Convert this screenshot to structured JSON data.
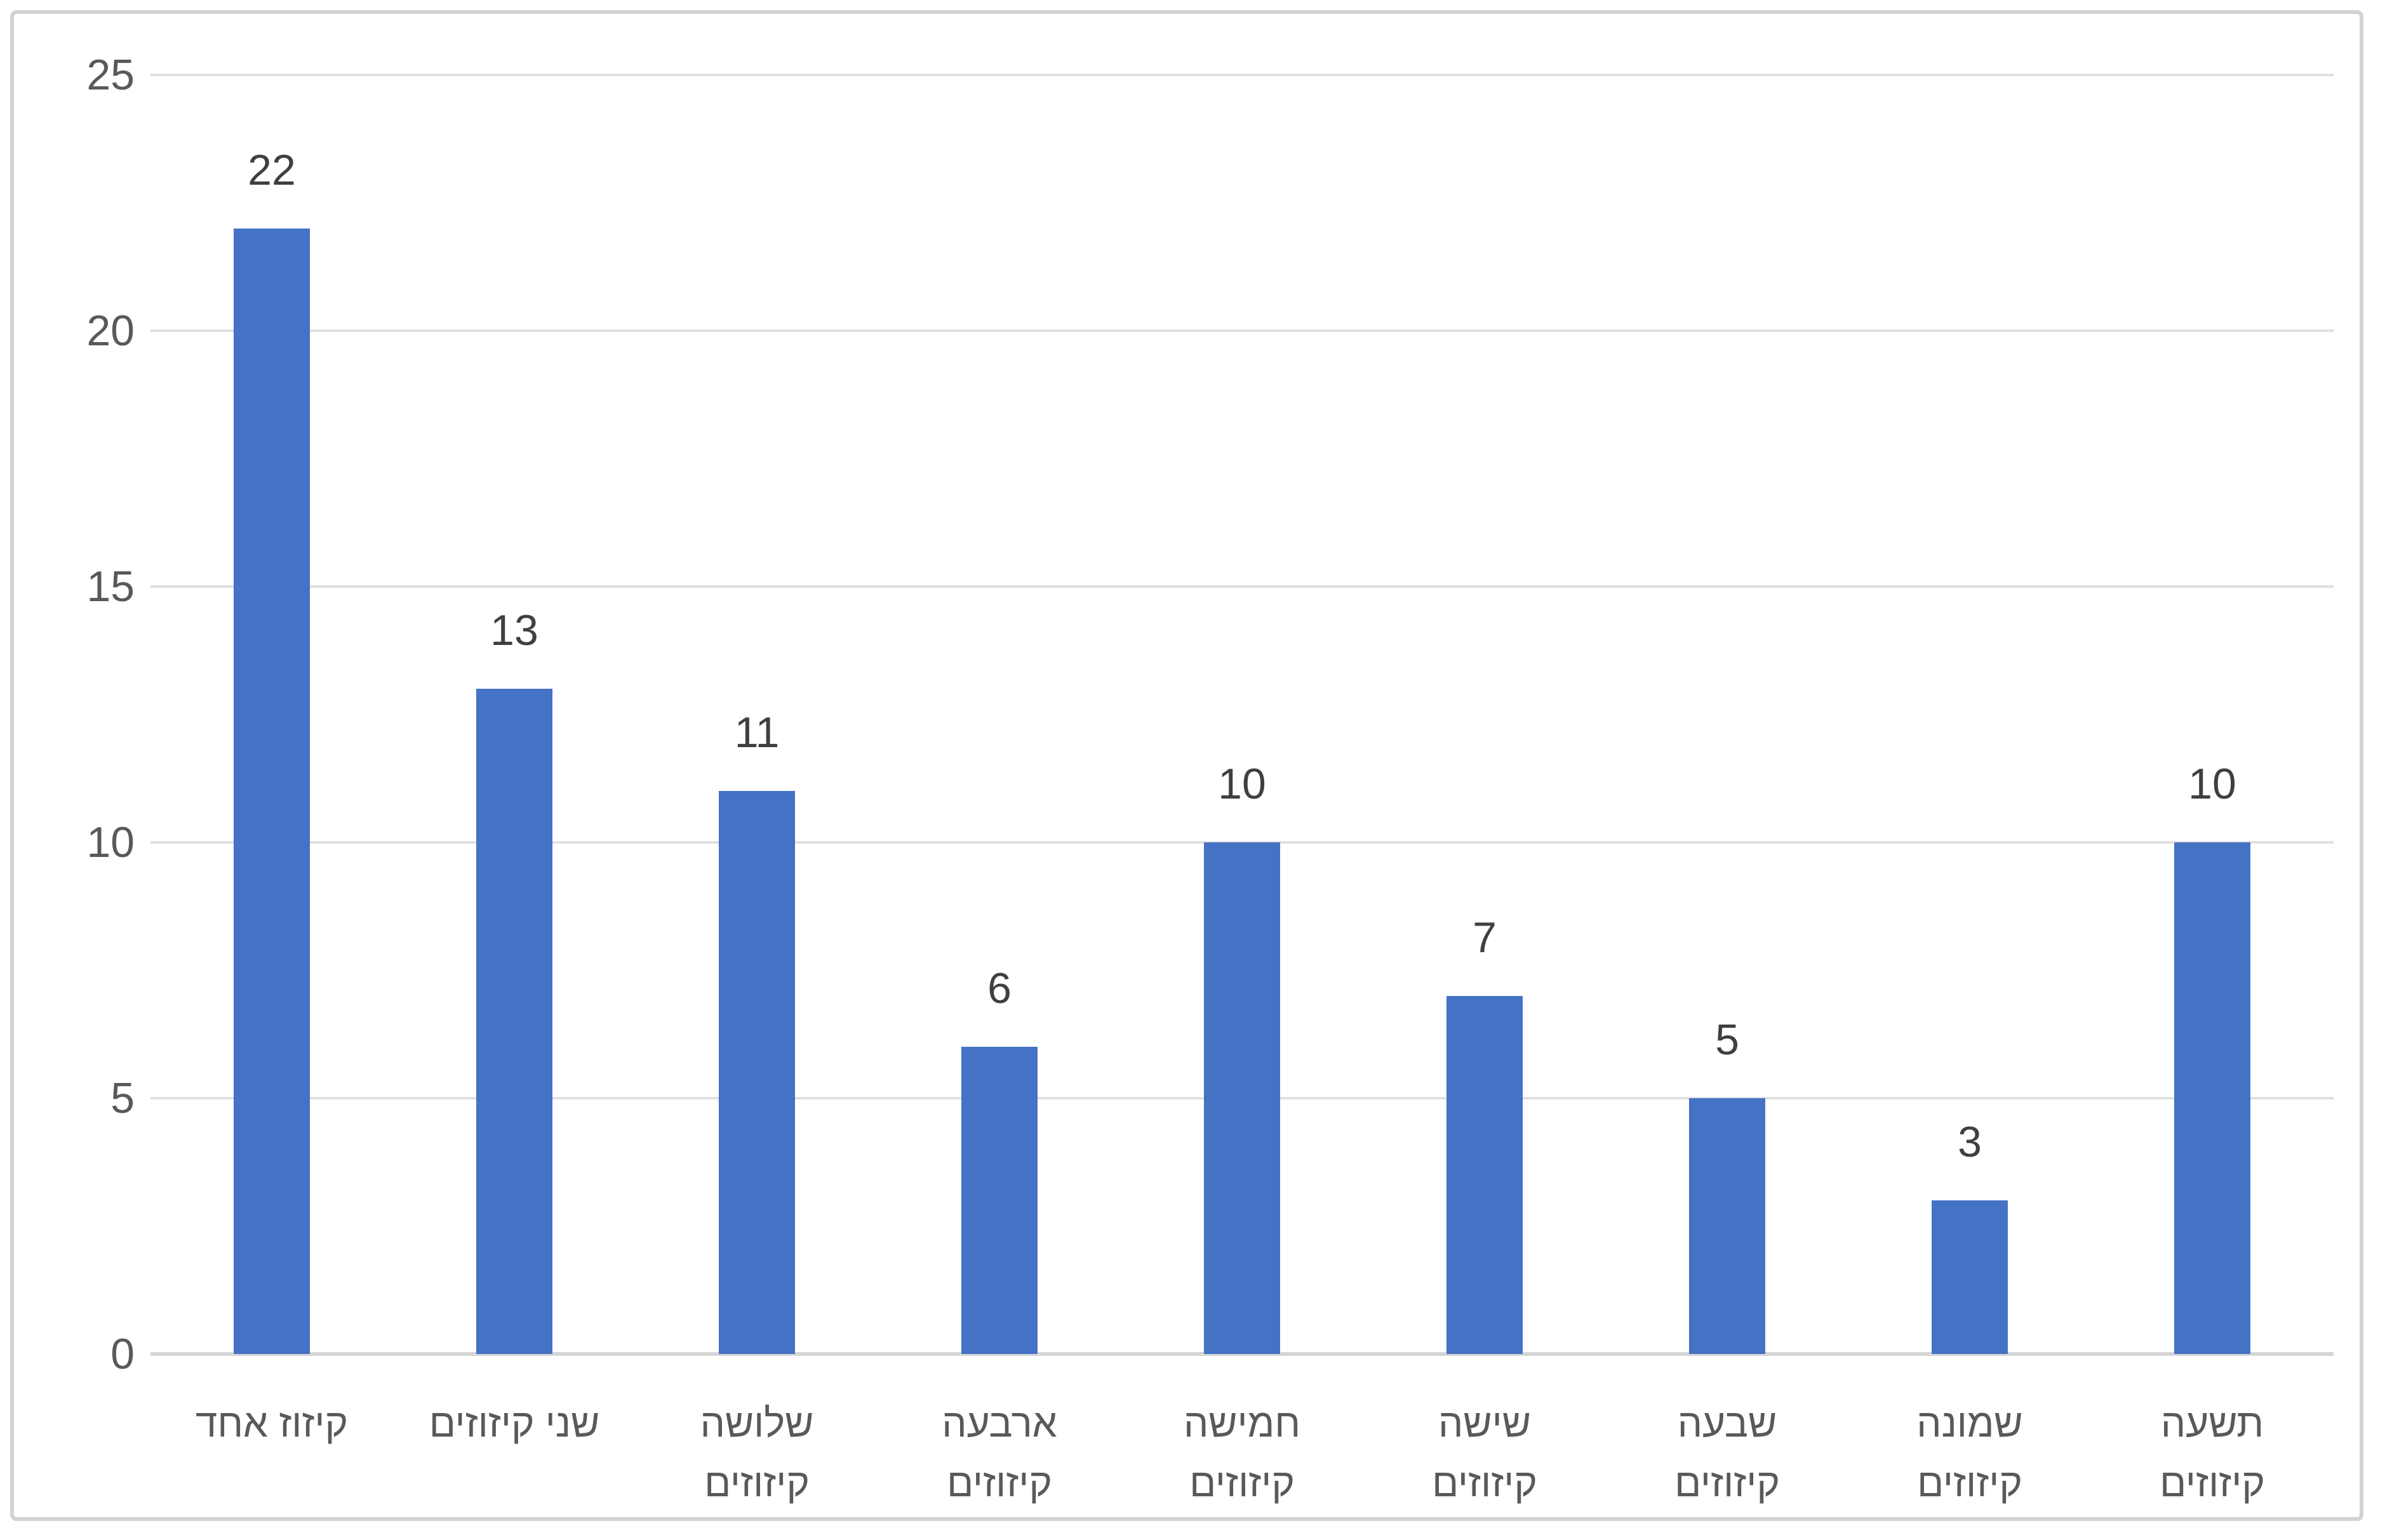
{
  "chart_data": {
    "type": "bar",
    "title": "",
    "xlabel": "",
    "ylabel": "",
    "categories": [
      {
        "label": "קיזוז אחד",
        "lines": [
          "קיזוז אחד"
        ]
      },
      {
        "label": "שני קיזוזים",
        "lines": [
          "שני קיזוזים"
        ]
      },
      {
        "label": "שלושה קיזוזים",
        "lines": [
          "שלושה",
          "קיזוזים"
        ]
      },
      {
        "label": "ארבעה קיזוזים",
        "lines": [
          "ארבעה",
          "קיזוזים"
        ]
      },
      {
        "label": "חמישה קיזוזים",
        "lines": [
          "חמישה",
          "קיזוזים"
        ]
      },
      {
        "label": "שישה קיזוזים",
        "lines": [
          "שישה",
          "קיזוזים"
        ]
      },
      {
        "label": "שבעה קיזוזים",
        "lines": [
          "שבעה",
          "קיזוזים"
        ]
      },
      {
        "label": "שמונה קיזוזים",
        "lines": [
          "שמונה",
          "קיזוזים"
        ]
      },
      {
        "label": "תשעה קיזוזים",
        "lines": [
          "תשעה",
          "קיזוזים"
        ]
      }
    ],
    "values": [
      22,
      13,
      11,
      6,
      10,
      7,
      5,
      3,
      10
    ],
    "data_labels": [
      "22",
      "13",
      "11",
      "6",
      "10",
      "7",
      "5",
      "3",
      "10"
    ],
    "ylim": [
      0,
      25
    ],
    "y_ticks": [
      0,
      5,
      10,
      15,
      20,
      25
    ],
    "grid": true,
    "legend": false,
    "text_direction": "rtl",
    "colors": {
      "bar": "#4472C4",
      "gridline": "#E0E0E0",
      "axis_line": "#D6D6D6",
      "tick_label": "#595959",
      "category_label": "#595959",
      "data_label": "#3F3F3F",
      "frame_border": "#D2D2D2",
      "background": "#FFFFFF"
    }
  }
}
